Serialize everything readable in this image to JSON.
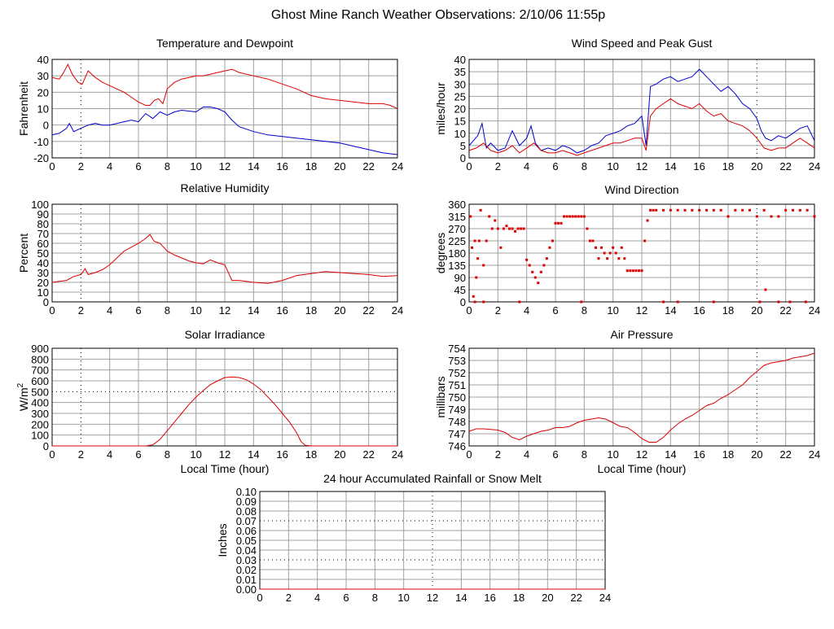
{
  "page": {
    "title": "Ghost Mine Ranch Weather Observations: 2/10/06 11:55p"
  },
  "colors": {
    "red": "#dd0000",
    "blue": "#0000cc",
    "grid": "#a0a0a0"
  },
  "chart_data": [
    {
      "id": "temp",
      "type": "line",
      "title": "Temperature and Dewpoint",
      "ylabel": "Fahrenheit",
      "xlabel": "",
      "xlim": [
        0,
        24
      ],
      "ylim": [
        -20,
        40
      ],
      "xticks": [
        "0",
        "2",
        "4",
        "6",
        "8",
        "10",
        "12",
        "14",
        "16",
        "18",
        "20",
        "22",
        "24"
      ],
      "yticks": [
        "-20",
        "-10",
        "0",
        "10",
        "20",
        "30",
        "40"
      ],
      "dotted_x": [
        2
      ],
      "dotted_y": [],
      "series": [
        {
          "color": "red",
          "style": "line",
          "x": [
            0,
            0.5,
            0.8,
            1.1,
            1.4,
            1.8,
            2.1,
            2.5,
            3,
            3.5,
            4,
            4.5,
            5,
            5.5,
            6,
            6.5,
            6.8,
            7.1,
            7.4,
            7.7,
            8,
            8.5,
            9,
            9.5,
            10,
            10.5,
            11,
            11.5,
            12,
            12.5,
            13,
            14,
            15,
            16,
            17,
            18,
            19,
            20,
            21,
            22,
            23,
            23.5,
            24
          ],
          "y": [
            29,
            28,
            32,
            37,
            31,
            26,
            25,
            33,
            29,
            26,
            24,
            22,
            20,
            17,
            14,
            12,
            12,
            15,
            16,
            13,
            22,
            26,
            28,
            29,
            30,
            30,
            31,
            32,
            33,
            34,
            32,
            30,
            28,
            25,
            22,
            18,
            16,
            15,
            14,
            13,
            13,
            12,
            10
          ]
        },
        {
          "color": "blue",
          "style": "line",
          "x": [
            0,
            0.5,
            1,
            1.2,
            1.5,
            2,
            2.5,
            3,
            3.5,
            4,
            4.5,
            5,
            5.5,
            6,
            6.5,
            7,
            7.5,
            8,
            8.5,
            9,
            10,
            10.5,
            11,
            11.5,
            12,
            12.5,
            13,
            14,
            15,
            16,
            17,
            18,
            19,
            20,
            21,
            22,
            23,
            24
          ],
          "y": [
            -6,
            -5,
            -2,
            1,
            -4,
            -2,
            0,
            1,
            0,
            0,
            1,
            2,
            3,
            2,
            7,
            4,
            8,
            6,
            8,
            9,
            8,
            11,
            11,
            10,
            8,
            3,
            -1,
            -4,
            -6,
            -7,
            -8,
            -9,
            -10,
            -11,
            -13,
            -15,
            -17,
            -18
          ]
        }
      ]
    },
    {
      "id": "wind",
      "type": "line",
      "title": "Wind Speed and Peak Gust",
      "ylabel": "miles/hour",
      "xlabel": "",
      "xlim": [
        0,
        24
      ],
      "ylim": [
        0,
        40
      ],
      "xticks": [
        "0",
        "2",
        "4",
        "6",
        "8",
        "10",
        "12",
        "14",
        "16",
        "18",
        "20",
        "22",
        "24"
      ],
      "yticks": [
        "0",
        "5",
        "10",
        "15",
        "20",
        "25",
        "30",
        "35",
        "40"
      ],
      "dotted_x": [
        20
      ],
      "dotted_y": [],
      "series": [
        {
          "color": "blue",
          "style": "line",
          "x": [
            0,
            0.3,
            0.6,
            0.9,
            1.2,
            1.5,
            2,
            2.5,
            3,
            3.5,
            4,
            4.3,
            4.6,
            5,
            5.5,
            6,
            6.5,
            7,
            7.5,
            8,
            8.5,
            9,
            9.5,
            10,
            10.5,
            11,
            11.5,
            12,
            12.3,
            12.6,
            13,
            13.5,
            14,
            14.5,
            15,
            15.5,
            16,
            16.5,
            17,
            17.5,
            18,
            18.5,
            19,
            19.5,
            20,
            20.3,
            20.6,
            21,
            21.5,
            22,
            22.5,
            23,
            23.5,
            24
          ],
          "y": [
            5,
            7,
            9,
            14,
            4,
            6,
            3,
            4,
            11,
            5,
            8,
            13,
            6,
            3,
            4,
            3,
            5,
            4,
            2,
            3,
            5,
            6,
            9,
            10,
            11,
            13,
            14,
            17,
            5,
            29,
            30,
            32,
            33,
            31,
            32,
            33,
            36,
            33,
            30,
            27,
            29,
            26,
            22,
            20,
            16,
            11,
            8,
            7,
            9,
            8,
            10,
            12,
            13,
            7
          ]
        },
        {
          "color": "red",
          "style": "line",
          "x": [
            0,
            0.5,
            1,
            1.5,
            2,
            2.5,
            3,
            3.5,
            4,
            4.5,
            5,
            5.5,
            6,
            6.5,
            7,
            7.5,
            8,
            8.5,
            9,
            9.5,
            10,
            10.5,
            11,
            11.5,
            12,
            12.3,
            12.6,
            13,
            13.5,
            14,
            14.5,
            15,
            15.5,
            16,
            16.5,
            17,
            17.5,
            18,
            18.5,
            19,
            19.5,
            20,
            20.5,
            21,
            21.5,
            22,
            22.5,
            23,
            23.5,
            24
          ],
          "y": [
            3,
            4,
            6,
            3,
            2,
            3,
            5,
            2,
            4,
            6,
            3,
            2,
            2,
            3,
            2,
            1,
            2,
            3,
            4,
            5,
            6,
            6,
            7,
            8,
            8,
            3,
            17,
            20,
            22,
            24,
            22,
            21,
            20,
            22,
            19,
            17,
            18,
            15,
            14,
            13,
            11,
            8,
            4,
            3,
            4,
            4,
            6,
            8,
            6,
            4
          ]
        }
      ]
    },
    {
      "id": "humidity",
      "type": "line",
      "title": "Relative Humidity",
      "ylabel": "Percent",
      "xlabel": "",
      "xlim": [
        0,
        24
      ],
      "ylim": [
        0,
        100
      ],
      "xticks": [
        "0",
        "2",
        "4",
        "6",
        "8",
        "10",
        "12",
        "14",
        "16",
        "18",
        "20",
        "22",
        "24"
      ],
      "yticks": [
        "0",
        "10",
        "20",
        "30",
        "40",
        "50",
        "60",
        "70",
        "80",
        "90",
        "100"
      ],
      "dotted_x": [
        2
      ],
      "dotted_y": [],
      "series": [
        {
          "color": "red",
          "style": "line",
          "x": [
            0,
            0.5,
            1,
            1.5,
            2,
            2.3,
            2.5,
            3,
            3.5,
            4,
            4.5,
            5,
            5.5,
            6,
            6.5,
            6.8,
            7.1,
            7.5,
            8,
            8.5,
            9,
            9.5,
            10,
            10.5,
            11,
            11.5,
            12,
            12.5,
            13,
            14,
            15,
            16,
            17,
            18,
            19,
            20,
            21,
            22,
            23,
            24
          ],
          "y": [
            20,
            21,
            22,
            26,
            28,
            34,
            28,
            30,
            33,
            38,
            45,
            52,
            56,
            60,
            65,
            69,
            62,
            60,
            52,
            48,
            45,
            42,
            40,
            39,
            43,
            40,
            38,
            22,
            22,
            20,
            19,
            22,
            27,
            29,
            31,
            30,
            29,
            28,
            26,
            27
          ]
        }
      ]
    },
    {
      "id": "direction",
      "type": "scatter",
      "title": "Wind Direction",
      "ylabel": "degrees",
      "xlabel": "",
      "xlim": [
        0,
        24
      ],
      "ylim": [
        0,
        360
      ],
      "xticks": [
        "0",
        "2",
        "4",
        "6",
        "8",
        "10",
        "12",
        "14",
        "16",
        "18",
        "20",
        "22",
        "24"
      ],
      "yticks": [
        "0",
        "45",
        "90",
        "135",
        "180",
        "225",
        "270",
        "315",
        "360"
      ],
      "dotted_x": [
        20
      ],
      "dotted_y": [],
      "series": [
        {
          "color": "red",
          "style": "scatter",
          "x": [
            0.1,
            0.2,
            0.3,
            0.4,
            0.5,
            0.6,
            0.7,
            0.8,
            1.0,
            1.2,
            1.4,
            1.6,
            1.8,
            2.0,
            2.2,
            2.4,
            2.6,
            2.8,
            3.0,
            3.2,
            3.4,
            3.6,
            3.8,
            4.0,
            4.2,
            4.4,
            4.6,
            4.8,
            5.0,
            5.2,
            5.4,
            5.6,
            5.8,
            6.0,
            6.2,
            6.4,
            6.6,
            6.8,
            7.0,
            7.2,
            7.4,
            7.6,
            7.8,
            8.0,
            8.2,
            8.4,
            8.6,
            8.8,
            9.0,
            9.2,
            9.4,
            9.6,
            9.8,
            10.0,
            10.2,
            10.4,
            10.6,
            10.8,
            11.0,
            11.2,
            11.4,
            11.6,
            11.8,
            12.0,
            12.2,
            12.4,
            12.6,
            12.8,
            13.0,
            13.5,
            14.0,
            14.5,
            15.0,
            15.5,
            16.0,
            16.5,
            17.0,
            17.5,
            18.0,
            18.5,
            19.0,
            19.5,
            20.0,
            20.5,
            21.0,
            21.5,
            22.0,
            22.5,
            23.0,
            23.5,
            24.0,
            0.4,
            1.0,
            3.5,
            7.8,
            13.5,
            14.5,
            17.0,
            20.2,
            20.6,
            21.5,
            22.3,
            23.4
          ],
          "y": [
            315,
            200,
            20,
            225,
            90,
            160,
            225,
            338,
            135,
            225,
            315,
            270,
            300,
            270,
            200,
            270,
            280,
            270,
            270,
            260,
            270,
            270,
            270,
            155,
            135,
            110,
            90,
            70,
            110,
            135,
            160,
            200,
            225,
            290,
            290,
            290,
            315,
            315,
            315,
            315,
            315,
            315,
            315,
            315,
            270,
            225,
            225,
            200,
            160,
            200,
            180,
            160,
            180,
            200,
            180,
            160,
            200,
            160,
            115,
            115,
            115,
            115,
            115,
            115,
            225,
            300,
            338,
            338,
            338,
            338,
            338,
            338,
            338,
            338,
            338,
            338,
            338,
            338,
            315,
            338,
            338,
            338,
            315,
            338,
            315,
            315,
            338,
            338,
            338,
            338,
            315,
            0,
            0,
            0,
            0,
            0,
            0,
            0,
            0,
            45,
            0,
            0,
            0
          ]
        }
      ]
    },
    {
      "id": "solar",
      "type": "line",
      "title": "Solar Irradiance",
      "ylabel": "W/m",
      "ylabel_sup": "2",
      "xlabel": "Local Time (hour)",
      "xlim": [
        0,
        24
      ],
      "ylim": [
        0,
        900
      ],
      "xticks": [
        "0",
        "2",
        "4",
        "6",
        "8",
        "10",
        "12",
        "14",
        "16",
        "18",
        "20",
        "22",
        "24"
      ],
      "yticks": [
        "0",
        "100",
        "200",
        "300",
        "400",
        "500",
        "600",
        "700",
        "800",
        "900"
      ],
      "dotted_x": [
        2
      ],
      "dotted_y": [
        500
      ],
      "series": [
        {
          "color": "red",
          "style": "line",
          "x": [
            0,
            6.5,
            7,
            7.5,
            8,
            8.5,
            9,
            9.5,
            10,
            10.5,
            11,
            11.5,
            12,
            12.5,
            13,
            13.5,
            14,
            14.5,
            15,
            15.5,
            16,
            16.5,
            17,
            17.3,
            17.6,
            18,
            24
          ],
          "y": [
            0,
            0,
            10,
            60,
            140,
            220,
            300,
            380,
            450,
            510,
            565,
            600,
            630,
            635,
            630,
            610,
            570,
            520,
            450,
            380,
            300,
            220,
            120,
            40,
            5,
            0,
            0
          ]
        }
      ]
    },
    {
      "id": "pressure",
      "type": "line",
      "title": "Air Pressure",
      "ylabel": "millibars",
      "xlabel": "Local Time (hour)",
      "xlim": [
        0,
        24
      ],
      "ylim": [
        746,
        754
      ],
      "xticks": [
        "0",
        "2",
        "4",
        "6",
        "8",
        "10",
        "12",
        "14",
        "16",
        "18",
        "20",
        "22",
        "24"
      ],
      "yticks": [
        "746",
        "747",
        "748",
        "749",
        "750",
        "751",
        "752",
        "753",
        "754"
      ],
      "dotted_x": [
        20
      ],
      "dotted_y": [],
      "series": [
        {
          "color": "red",
          "style": "line",
          "x": [
            0,
            0.5,
            1,
            2,
            2.5,
            3,
            3.5,
            4,
            4.5,
            5,
            5.5,
            6,
            6.5,
            7,
            7.5,
            8,
            8.5,
            9,
            9.5,
            10,
            10.5,
            11,
            11.5,
            12,
            12.5,
            13,
            13.5,
            14,
            14.5,
            15,
            15.5,
            16,
            16.5,
            17,
            17.5,
            18,
            18.5,
            19,
            19.5,
            20,
            20.5,
            21,
            21.5,
            22,
            22.5,
            23,
            23.5,
            24
          ],
          "y": [
            747.2,
            747.4,
            747.4,
            747.3,
            747.1,
            746.7,
            746.5,
            746.8,
            747.0,
            747.2,
            747.3,
            747.5,
            747.5,
            747.6,
            747.9,
            748.1,
            748.2,
            748.3,
            748.2,
            747.9,
            747.6,
            747.5,
            747.1,
            746.6,
            746.3,
            746.3,
            746.7,
            747.3,
            747.8,
            748.2,
            748.5,
            748.9,
            749.3,
            749.5,
            749.9,
            750.2,
            750.6,
            751.0,
            751.6,
            752.1,
            752.6,
            752.8,
            752.9,
            753.0,
            753.2,
            753.3,
            753.4,
            753.6
          ]
        }
      ]
    },
    {
      "id": "rain",
      "type": "line",
      "title": "24 hour Accumulated Rainfall or Snow Melt",
      "ylabel": "Inches",
      "xlabel": "",
      "xlim": [
        0,
        24
      ],
      "ylim": [
        0,
        0.1
      ],
      "xticks": [
        "0",
        "2",
        "4",
        "6",
        "8",
        "10",
        "12",
        "14",
        "16",
        "18",
        "20",
        "22",
        "24"
      ],
      "yticks": [
        "0.00",
        "0.01",
        "0.02",
        "0.03",
        "0.04",
        "0.05",
        "0.06",
        "0.07",
        "0.08",
        "0.09",
        "0.10"
      ],
      "dotted_x": [
        12
      ],
      "dotted_y": [
        0.03,
        0.07
      ],
      "series": [
        {
          "color": "red",
          "style": "line",
          "x": [
            0,
            24
          ],
          "y": [
            0,
            0
          ]
        }
      ]
    }
  ]
}
